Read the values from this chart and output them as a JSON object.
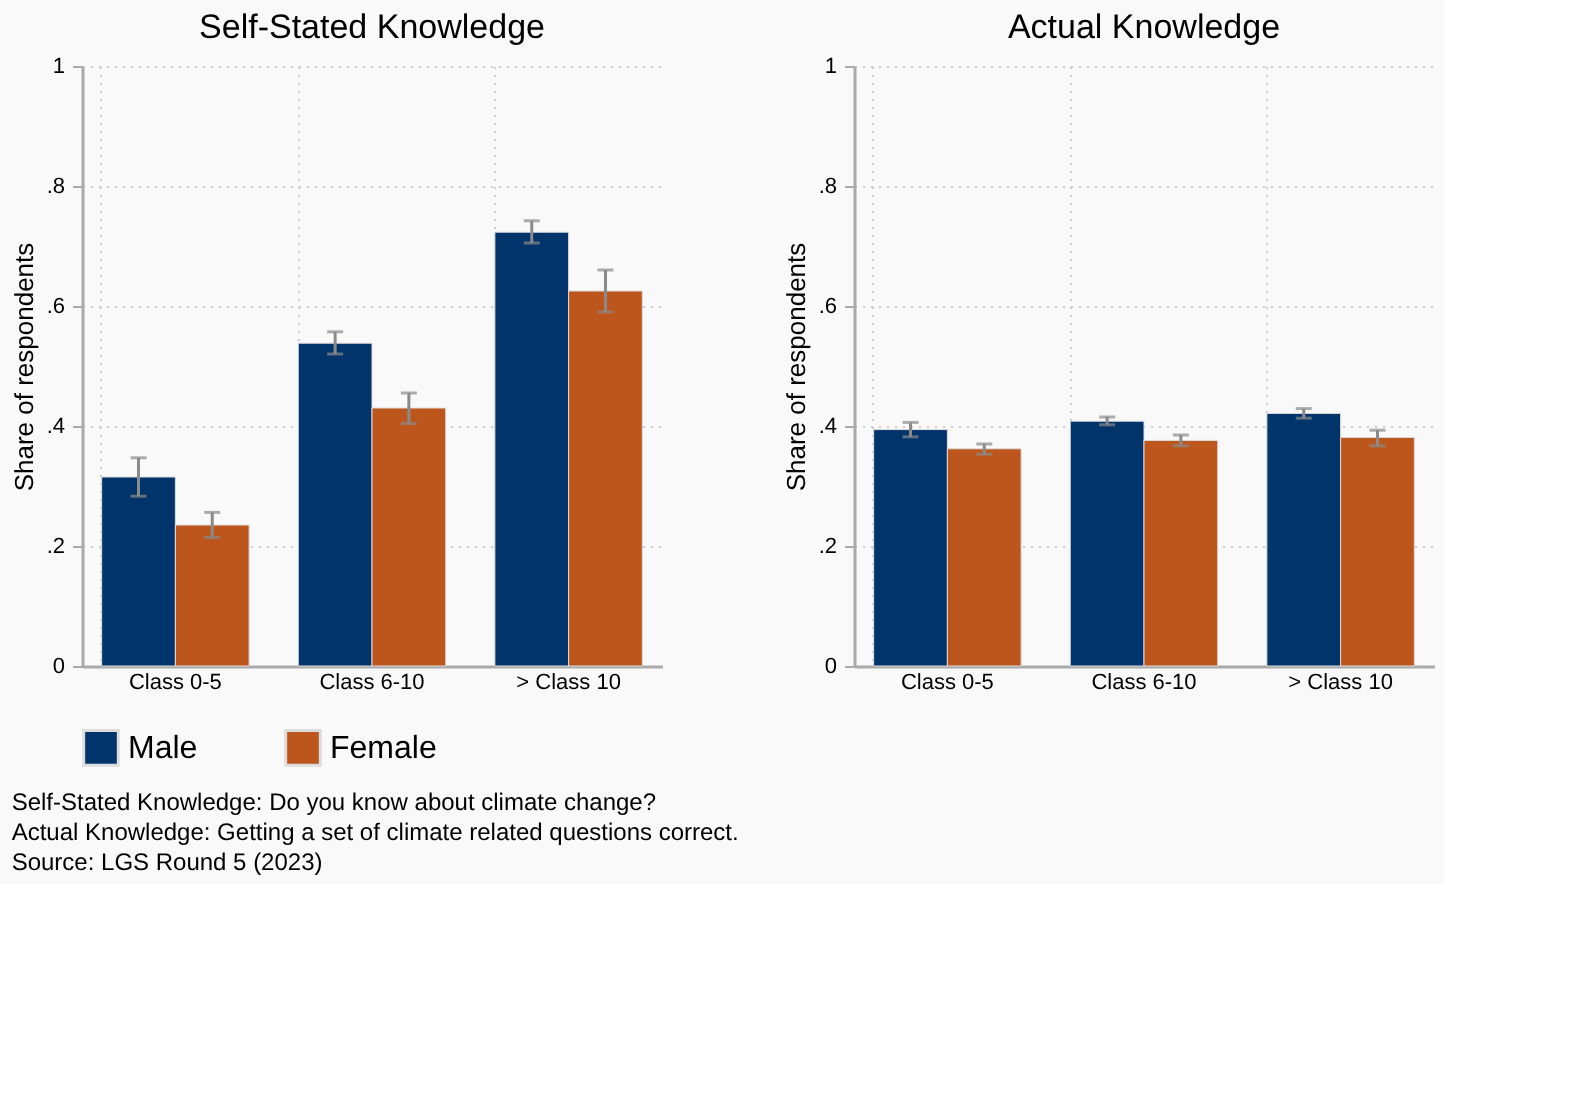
{
  "chart_data": [
    {
      "type": "bar",
      "title": "Self-Stated Knowledge",
      "ylabel": "Share of respondents",
      "categories": [
        "Class 0-5",
        "Class 6-10",
        "> Class 10"
      ],
      "series": [
        {
          "name": "Male",
          "color": "#00346b",
          "values": [
            0.315,
            0.538,
            0.723
          ],
          "errors": [
            [
              0.283,
              0.347
            ],
            [
              0.52,
              0.557
            ],
            [
              0.705,
              0.742
            ]
          ]
        },
        {
          "name": "Female",
          "color": "#bd561d",
          "values": [
            0.235,
            0.43,
            0.625
          ],
          "errors": [
            [
              0.214,
              0.256
            ],
            [
              0.404,
              0.455
            ],
            [
              0.59,
              0.66
            ]
          ]
        }
      ],
      "ylim": [
        0,
        1
      ],
      "yticks": [
        0,
        {
          "value": 0.2,
          "label": ".2"
        },
        {
          "value": 0.4,
          "label": ".4"
        },
        {
          "value": 0.6,
          "label": ".6"
        },
        {
          "value": 0.8,
          "label": ".8"
        },
        1
      ],
      "grid": true,
      "legend": "bottom",
      "annotations": [
        "Self-Stated Knowledge: Do you know about climate change?",
        "Actual Knowledge: Getting a set of climate related questions correct.",
        "Source: LGS Round 5 (2023)"
      ]
    },
    {
      "type": "bar",
      "title": "Actual Knowledge",
      "ylabel": "Share of respondents",
      "categories": [
        "Class 0-5",
        "Class 6-10",
        "> Class 10"
      ],
      "series": [
        {
          "name": "Male",
          "color": "#00346b",
          "values": [
            0.394,
            0.408,
            0.421
          ],
          "errors": [
            [
              0.382,
              0.406
            ],
            [
              0.402,
              0.415
            ],
            [
              0.413,
              0.429
            ]
          ]
        },
        {
          "name": "Female",
          "color": "#bd561d",
          "values": [
            0.362,
            0.376,
            0.381
          ],
          "errors": [
            [
              0.353,
              0.37
            ],
            [
              0.367,
              0.385
            ],
            [
              0.367,
              0.393
            ]
          ]
        }
      ],
      "ylim": [
        0,
        1
      ],
      "yticks": [
        0,
        {
          "value": 0.2,
          "label": ".2"
        },
        {
          "value": 0.4,
          "label": ".4"
        },
        {
          "value": 0.6,
          "label": ".6"
        },
        {
          "value": 0.8,
          "label": ".8"
        },
        1
      ],
      "grid": true,
      "legend": "bottom"
    }
  ]
}
